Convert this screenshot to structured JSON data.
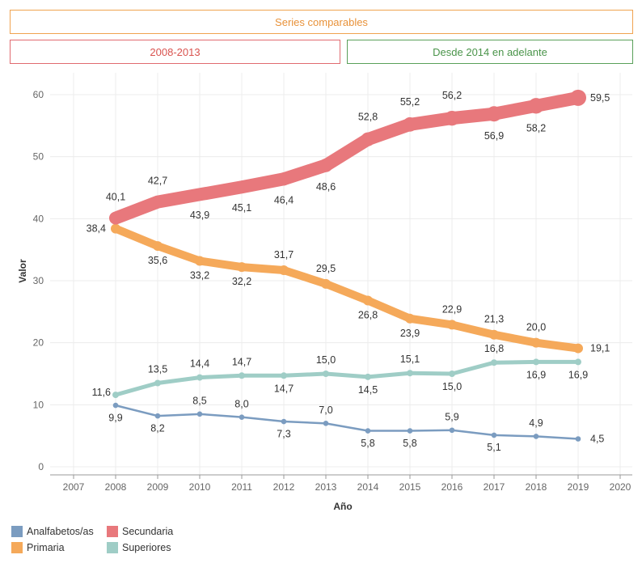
{
  "banners": {
    "top": "Series comparables",
    "left": "2008-2013",
    "right": "Desde 2014 en adelante"
  },
  "chart_data": {
    "type": "line",
    "title": "",
    "xlabel": "Año",
    "ylabel": "Valor",
    "xlim": [
      2007,
      2020
    ],
    "ylim": [
      0,
      60
    ],
    "x_ticks": [
      2007,
      2008,
      2009,
      2010,
      2011,
      2012,
      2013,
      2014,
      2015,
      2016,
      2017,
      2018,
      2019,
      2020
    ],
    "y_ticks": [
      0,
      10,
      20,
      30,
      40,
      50,
      60
    ],
    "grid": true,
    "legend_position": "bottom-left",
    "x": [
      2008,
      2009,
      2010,
      2011,
      2012,
      2013,
      2014,
      2015,
      2016,
      2017,
      2018,
      2019
    ],
    "series": [
      {
        "name": "Analfabetos/as",
        "color": "#7b9cc0",
        "values": [
          9.9,
          8.2,
          8.5,
          8.0,
          7.3,
          7.0,
          5.8,
          5.8,
          5.9,
          5.1,
          4.9,
          4.5
        ],
        "labels": [
          "9,9",
          "8,2",
          "8,5",
          "8,0",
          "7,3",
          "7,0",
          "5,8",
          "5,8",
          "5,9",
          "5,1",
          "4,9",
          "4,5"
        ]
      },
      {
        "name": "Primaria",
        "color": "#f5a95a",
        "values": [
          38.4,
          35.6,
          33.2,
          32.2,
          31.7,
          29.5,
          26.8,
          23.9,
          22.9,
          21.3,
          20.0,
          19.1
        ],
        "labels": [
          "38,4",
          "35,6",
          "33,2",
          "32,2",
          "31,7",
          "29,5",
          "26,8",
          "23,9",
          "22,9",
          "21,3",
          "20,0",
          "19,1"
        ]
      },
      {
        "name": "Secundaria",
        "color": "#e8787c",
        "values": [
          40.1,
          42.7,
          43.9,
          45.1,
          46.4,
          48.6,
          52.8,
          55.2,
          56.2,
          56.9,
          58.2,
          59.5
        ],
        "labels": [
          "40,1",
          "42,7",
          "43,9",
          "45,1",
          "46,4",
          "48,6",
          "52,8",
          "55,2",
          "56,2",
          "56,9",
          "58,2",
          "59,5"
        ]
      },
      {
        "name": "Superiores",
        "color": "#9fcdc6",
        "values": [
          11.6,
          13.5,
          14.4,
          14.7,
          14.7,
          15.0,
          14.5,
          15.1,
          15.0,
          16.8,
          16.9,
          16.9
        ],
        "labels": [
          "11,6",
          "13,5",
          "14,4",
          "14,7",
          "14,7",
          "15,0",
          "14,5",
          "15,1",
          "15,0",
          "16,8",
          "16,9",
          "16,9"
        ]
      }
    ]
  }
}
